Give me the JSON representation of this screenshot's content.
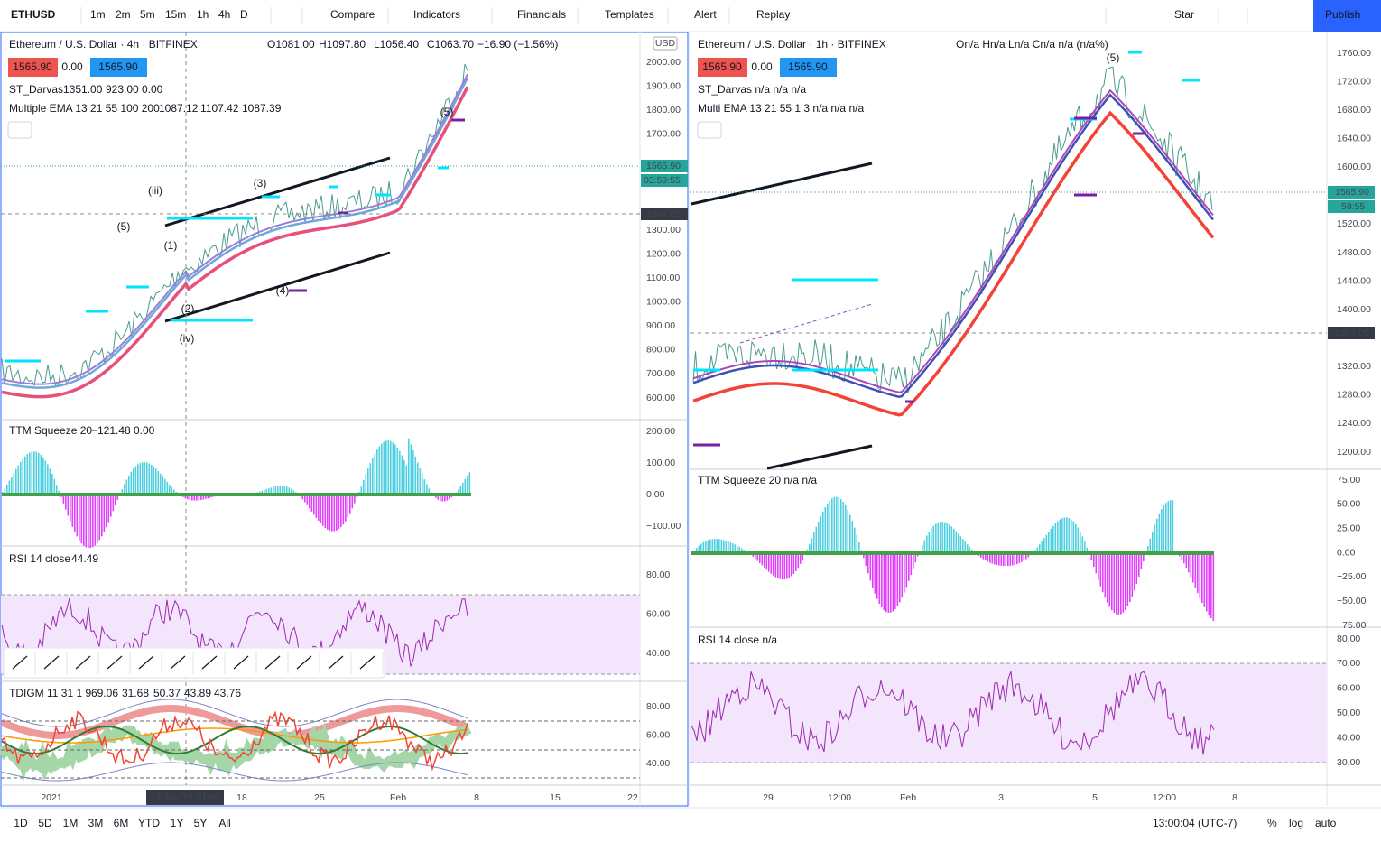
{
  "toolbar": {
    "symbol": "ETHUSD",
    "intervals": [
      "1m",
      "2m",
      "5m",
      "15m",
      "1h",
      "4h",
      "D"
    ],
    "buttons": [
      "Compare",
      "Indicators",
      "Financials",
      "Templates",
      "Alert",
      "Replay"
    ],
    "star": "Star",
    "publish": "Publish"
  },
  "left": {
    "title": "Ethereum / U.S. Dollar · 4h · BITFINEX",
    "ohlc": [
      "O1081.00",
      "H1097.80",
      "L1056.40",
      "C1063.70",
      "−16.90 (−1.56%)"
    ],
    "badges": [
      "1565.90",
      "0.00",
      "1565.90"
    ],
    "darvas": {
      "name": "ST_Darvas",
      "values": [
        "1351.00",
        "923.00",
        "0.00"
      ]
    },
    "ema": {
      "name": "Multiple EMA 13 21 55 100 200",
      "values": [
        "1087.12",
        "1107.42",
        "1087.39"
      ]
    },
    "currency": "USD",
    "price_axis": [
      "2000.00",
      "1900.00",
      "1800.00",
      "1700.00",
      "1300.00",
      "1200.00",
      "1100.00",
      "1000.00",
      "900.00",
      "800.00",
      "700.00",
      "600.00"
    ],
    "last_price": "1565.90",
    "countdown": "03:59:55",
    "crosshair_price": "1367.05",
    "waves": [
      "(iii)",
      "(5)",
      "(1)",
      "(2)",
      "(iv)",
      "(3)",
      "(4)",
      "(5)"
    ],
    "ttm": {
      "name": "TTM Squeeze 20",
      "values": [
        "−121.48",
        "0.00"
      ],
      "axis": [
        "200.00",
        "100.00",
        "0.00",
        "−100.00"
      ]
    },
    "rsi": {
      "name": "RSI 14 close",
      "value": "44.49",
      "axis": [
        "80.00",
        "60.00",
        "40.00"
      ]
    },
    "tdigm": {
      "name": "TDIGM 11 31 1 9",
      "values": [
        "69.06",
        "31.68",
        "50.37",
        "43.89",
        "43.76"
      ],
      "axis": [
        "80.00",
        "60.00",
        "40.00"
      ]
    },
    "time_axis": [
      "2021",
      "18",
      "25",
      "Feb",
      "8",
      "15",
      "22"
    ],
    "crosshair_time": "13 Jan '21   01:00"
  },
  "right": {
    "title": "Ethereum / U.S. Dollar · 1h · BITFINEX",
    "ohlc": "On/a Hn/a Ln/a Cn/a n/a (n/a%)",
    "badges": [
      "1565.90",
      "0.00",
      "1565.90"
    ],
    "darvas": "ST_Darvas  n/a  n/a  n/a",
    "ema": "Multi EMA 13 21 55 1 3  n/a  n/a  n/a",
    "price_axis": [
      "1760.00",
      "1720.00",
      "1680.00",
      "1640.00",
      "1600.00",
      "1520.00",
      "1480.00",
      "1440.00",
      "1400.00",
      "1320.00",
      "1280.00",
      "1240.00",
      "1200.00"
    ],
    "last_price": "1565.90",
    "countdown": "59:55",
    "crosshair_price": "1367.05",
    "wave": "(5)",
    "ttm": {
      "name": "TTM Squeeze 20  n/a  n/a",
      "axis": [
        "75.00",
        "50.00",
        "25.00",
        "0.00",
        "−25.00",
        "−50.00",
        "−75.00"
      ]
    },
    "rsi": {
      "name": "RSI 14 close  n/a",
      "axis": [
        "80.00",
        "70.00",
        "60.00",
        "50.00",
        "40.00",
        "30.00"
      ]
    },
    "time_axis": [
      "29",
      "12:00",
      "Feb",
      "3",
      "5",
      "12:00",
      "8"
    ]
  },
  "bottom": {
    "ranges": [
      "1D",
      "5D",
      "1M",
      "3M",
      "6M",
      "YTD",
      "1Y",
      "5Y",
      "All"
    ],
    "clock": "13:00:04 (UTC-7)",
    "percent": "%",
    "log": "log",
    "auto": "auto"
  }
}
